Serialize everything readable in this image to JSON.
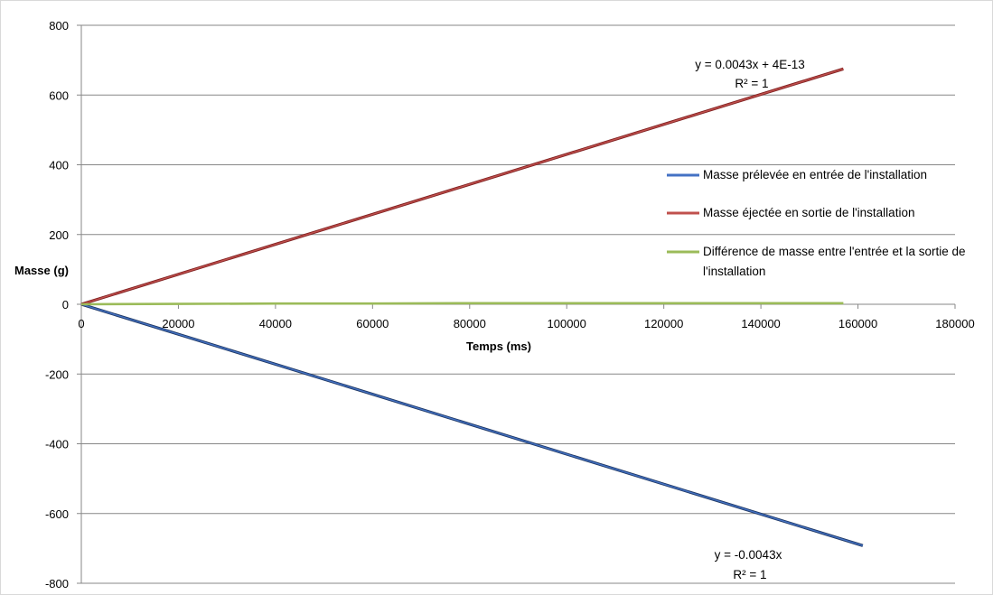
{
  "chart_data": {
    "type": "line",
    "title": "",
    "xlabel": "Temps (ms)",
    "ylabel": "Masse (g)",
    "xlim": [
      0,
      180000
    ],
    "ylim": [
      -800,
      800
    ],
    "x_ticks": [
      0,
      20000,
      40000,
      60000,
      80000,
      100000,
      120000,
      140000,
      160000,
      180000
    ],
    "y_ticks": [
      -800,
      -600,
      -400,
      -200,
      0,
      200,
      400,
      600,
      800
    ],
    "grid": "horizontal",
    "legend_position": "right",
    "series": [
      {
        "name": "Masse prélevée en entrée de l'installation",
        "color": "#4472c4",
        "x": [
          0,
          161000
        ],
        "y": [
          0,
          -692
        ]
      },
      {
        "name": "Masse éjectée en sortie de l'installation",
        "color": "#c0504d",
        "x": [
          0,
          157000
        ],
        "y": [
          0,
          675
        ]
      },
      {
        "name_lines": [
          "Différence de masse entre l'entrée et la sortie de",
          "l'installation"
        ],
        "color": "#9bbb59",
        "x": [
          0,
          20000,
          40000,
          60000,
          80000,
          100000,
          120000,
          140000,
          157000
        ],
        "y": [
          0,
          1,
          2,
          2,
          3,
          3,
          3,
          3,
          3
        ]
      }
    ],
    "trendlines": [
      {
        "series_index": 1,
        "equation": "y = 0.0043x + 4E-13",
        "r2": "R² = 1"
      },
      {
        "series_index": 0,
        "equation": "y = -0.0043x",
        "r2": "R² = 1"
      }
    ]
  }
}
